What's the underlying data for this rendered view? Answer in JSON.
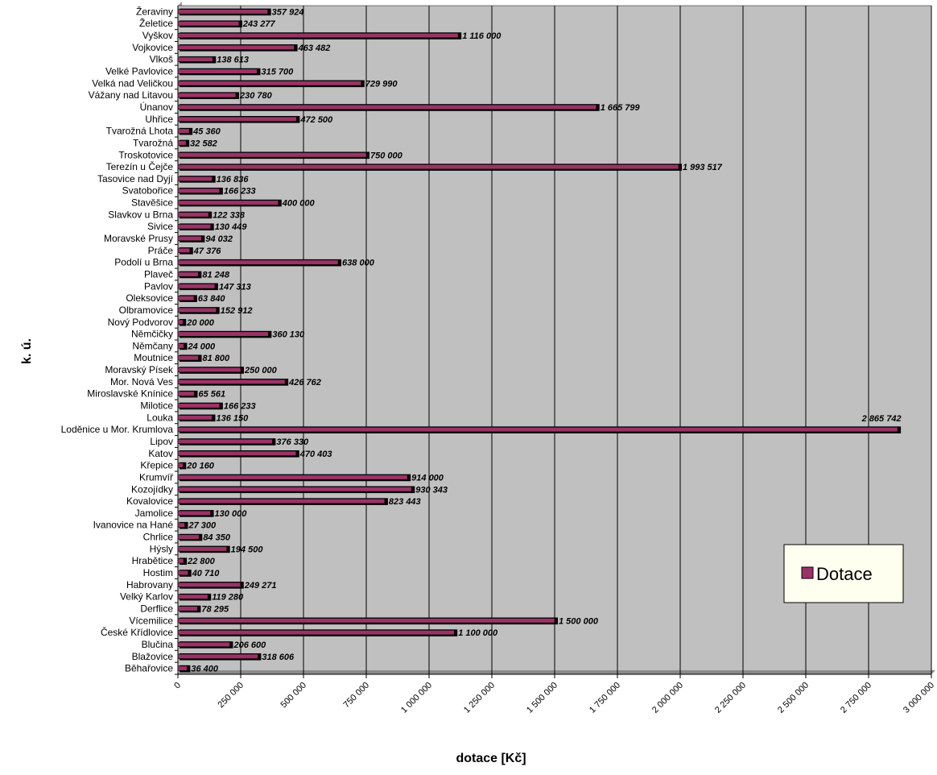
{
  "chart_data": {
    "type": "bar",
    "orientation": "horizontal",
    "categories": [
      "Běhařovice",
      "Blažovice",
      "Blučina",
      "České Křídlovice",
      "Vícemilice",
      "Derflice",
      "Velký Karlov",
      "Habrovany",
      "Hostim",
      "Hrabětice",
      "Hýsly",
      "Chrlice",
      "Ivanovice na Hané",
      "Jamolice",
      "Kovalovice",
      "Kozojídky",
      "Krumvíř",
      "Křepice",
      "Katov",
      "Lipov",
      "Loděnice u Mor. Krumlova",
      "Louka",
      "Milotice",
      "Miroslavské Knínice",
      "Mor. Nová Ves",
      "Moravský Písek",
      "Moutnice",
      "Němčany",
      "Němčičky",
      "Nový Podvorov",
      "Olbramovice",
      "Oleksovice",
      "Pavlov",
      "Plaveč",
      "Podolí u Brna",
      "Práče",
      "Moravské Prusy",
      "Sivice",
      "Slavkov u Brna",
      "Stavěšice",
      "Svatobořice",
      "Tasovice nad Dyjí",
      "Terezín u Čejče",
      "Troskotovice",
      "Tvarožná",
      "Tvarožná Lhota",
      "Uhřice",
      "Únanov",
      "Vážany nad Litavou",
      "Velká nad Veličkou",
      "Velké Pavlovice",
      "Vlkoš",
      "Vojkovice",
      "Vyškov",
      "Želetice",
      "Žeraviny"
    ],
    "series": [
      {
        "name": "Dotace",
        "values": [
          36400,
          318606,
          206600,
          1100000,
          1500000,
          78295,
          119280,
          249271,
          40710,
          22800,
          194500,
          84350,
          27300,
          130000,
          823443,
          930343,
          914000,
          20160,
          470403,
          376330,
          2865742,
          136150,
          166233,
          65561,
          426762,
          250000,
          81800,
          24000,
          360130,
          20000,
          152912,
          63840,
          147313,
          81248,
          638000,
          47376,
          94032,
          130449,
          122338,
          400000,
          166233,
          136836,
          1993517,
          750000,
          32582,
          45360,
          472500,
          1665799,
          230780,
          729990,
          315700,
          138613,
          463482,
          1116000,
          243277,
          357924
        ],
        "labels": [
          "36 400",
          "318 606",
          "206 600",
          "1 100 000",
          "1 500 000",
          "78 295",
          "119 280",
          "249 271",
          "40 710",
          "22 800",
          "194 500",
          "84 350",
          "27 300",
          "130 000",
          "823 443",
          "930 343",
          "914 000",
          "20 160",
          "470 403",
          "376 330",
          "2 865 742",
          "136 150",
          "166 233",
          "65 561",
          "426 762",
          "250 000",
          "81 800",
          "24 000",
          "360 130",
          "20 000",
          "152 912",
          "63 840",
          "147 313",
          "81 248",
          "638 000",
          "47 376",
          "94 032",
          "130 449",
          "122 338",
          "400 000",
          "166 233",
          "136 836",
          "1 993 517",
          "750 000",
          "32 582",
          "45 360",
          "472 500",
          "1 665 799",
          "230 780",
          "729 990",
          "315 700",
          "138 613",
          "463 482",
          "1 116 000",
          "243 277",
          "357 924"
        ]
      }
    ],
    "xlabel": "dotace [Kč]",
    "ylabel": "k. ú.",
    "xlim": [
      0,
      3000000
    ],
    "xticks": [
      0,
      250000,
      500000,
      750000,
      1000000,
      1250000,
      1500000,
      1750000,
      2000000,
      2250000,
      2500000,
      2750000,
      3000000
    ],
    "xtick_labels": [
      "0",
      "250 000",
      "500 000",
      "750 000",
      "1 000 000",
      "1 250 000",
      "1 500 000",
      "1 750 000",
      "2 000 000",
      "2 250 000",
      "2 500 000",
      "2 750 000",
      "3 000 000"
    ],
    "grid": true,
    "legend": {
      "position": "lower-right",
      "entries": [
        "Dotace"
      ]
    },
    "colors": {
      "bar": "#993366",
      "bar_shadow": "#000000",
      "plot_bg": "#c0c0c0",
      "legend_bg": "#fffff0"
    }
  }
}
